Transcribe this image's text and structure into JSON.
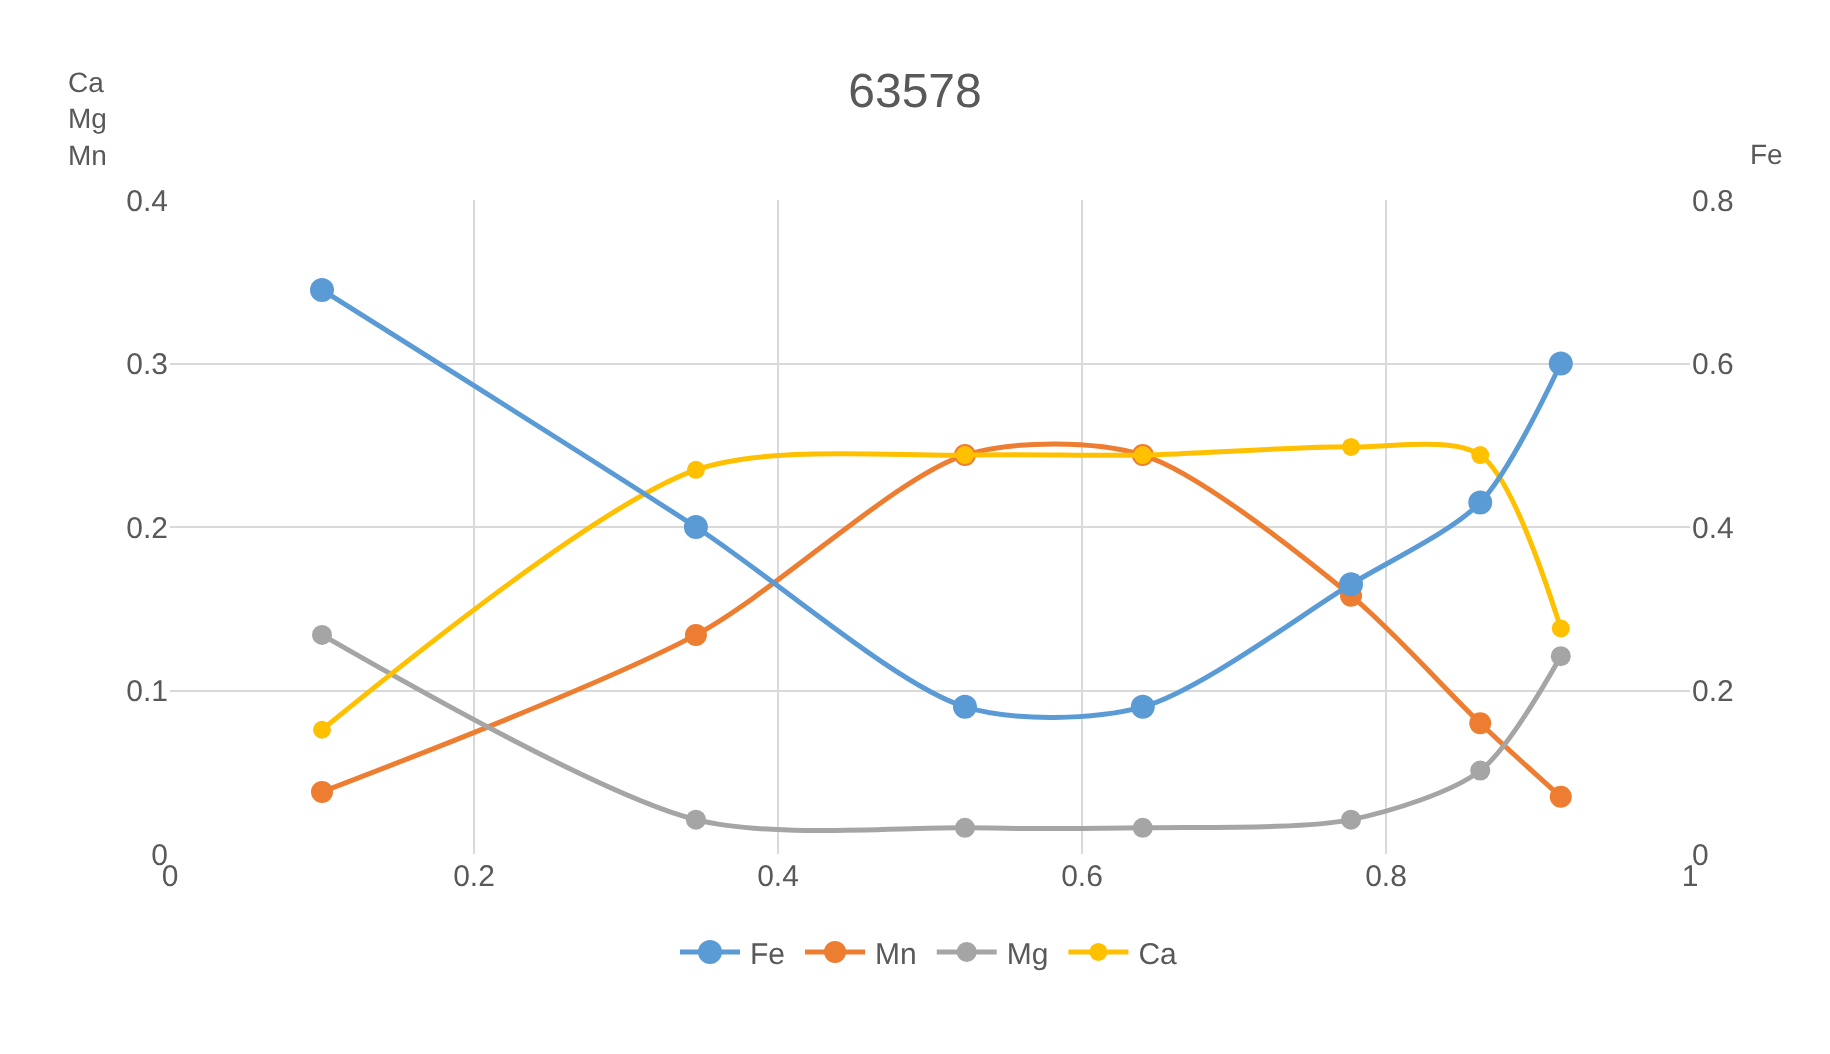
{
  "chart_data": {
    "type": "line",
    "title": "63578",
    "ylabel": "Ca\nMg\nMn",
    "y2label": "Fe",
    "x": [
      0.1,
      0.346,
      0.523,
      0.64,
      0.777,
      0.862,
      0.915
    ],
    "series": [
      {
        "name": "Fe",
        "color": "#5b9bd5",
        "axis": "y2",
        "values": [
          0.69,
          0.4,
          0.18,
          0.18,
          0.33,
          0.43,
          0.6
        ]
      },
      {
        "name": "Mn",
        "color": "#ed7d31",
        "values": [
          0.038,
          0.134,
          0.244,
          0.244,
          0.158,
          0.08,
          0.035
        ]
      },
      {
        "name": "Mg",
        "color": "#a5a5a5",
        "values": [
          0.134,
          0.021,
          0.016,
          0.016,
          0.021,
          0.051,
          0.121
        ]
      },
      {
        "name": "Ca",
        "color": "#ffc000",
        "values": [
          0.076,
          0.235,
          0.244,
          0.244,
          0.249,
          0.244,
          0.138
        ]
      }
    ],
    "xlim": [
      0,
      1
    ],
    "xticks": [
      0,
      0.2,
      0.4,
      0.6,
      0.8,
      1
    ],
    "ylim": [
      0,
      0.4
    ],
    "yticks": [
      0,
      0.1,
      0.2,
      0.3,
      0.4
    ],
    "y2lim": [
      0,
      0.8
    ],
    "y2ticks": [
      0,
      0.2,
      0.4,
      0.6,
      0.8
    ],
    "grid": true,
    "legend": "bottom",
    "marker": "circle",
    "line_style": "solid"
  }
}
